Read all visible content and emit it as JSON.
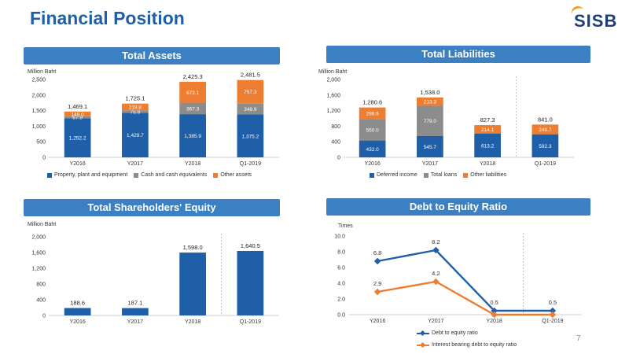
{
  "page": {
    "title": "Financial Position",
    "logo_text": "SISB",
    "page_number": "7"
  },
  "colors": {
    "navy": "#2d4f6c",
    "blue": "#1f5fa8",
    "gray": "#8c8c8c",
    "orange": "#ed7d31",
    "banner": "#3a80c2"
  },
  "chart_data": [
    {
      "id": "total_assets",
      "type": "bar",
      "stacked": true,
      "title": "Total Assets",
      "ylabel": "Million Baht",
      "ylim": [
        0,
        2500
      ],
      "yticks": [
        "0",
        "500",
        "1,000",
        "1,500",
        "2,000",
        "2,500"
      ],
      "categories": [
        "Y2016",
        "Y2017",
        "Y2018",
        "Q1-2019"
      ],
      "series": [
        {
          "name": "Property, plant and equipment",
          "color": "#1f5fa8",
          "values": [
            1252.2,
            1429.7,
            1385.9,
            1375.2
          ],
          "labels": [
            "1,252.2",
            "1,429.7",
            "1,385.9",
            "1,375.2"
          ]
        },
        {
          "name": "Cash and cash equivalents",
          "color": "#8c8c8c",
          "values": [
            67.9,
            75.6,
            367.3,
            348.9
          ],
          "labels": [
            "67.9",
            "75.6",
            "367.3",
            "348.9"
          ]
        },
        {
          "name": "Other assets",
          "color": "#ed7d31",
          "values": [
            149.0,
            219.8,
            672.1,
            757.3
          ],
          "labels": [
            "149.0",
            "219.8",
            "672.1",
            "757.3"
          ]
        }
      ],
      "totals": [
        "1,469.1",
        "1,725.1",
        "2,425.3",
        "2,481.5"
      ],
      "legend": "bottom"
    },
    {
      "id": "total_liabilities",
      "type": "bar",
      "stacked": true,
      "title": "Total Liabilities",
      "ylabel": "Million Baht",
      "ylim": [
        0,
        2000
      ],
      "yticks": [
        "0",
        "400",
        "800",
        "1,200",
        "1,600",
        "2,000"
      ],
      "categories": [
        "Y2016",
        "Y2017",
        "Y2018",
        "Q1-2019"
      ],
      "series": [
        {
          "name": "Deferred income",
          "color": "#1f5fa8",
          "values": [
            432.0,
            545.7,
            613.2,
            592.3
          ],
          "labels": [
            "432.0",
            "545.7",
            "613.2",
            "592.3"
          ]
        },
        {
          "name": "Total loans",
          "color": "#8c8c8c",
          "values": [
            550.0,
            779.0,
            0,
            0
          ],
          "labels": [
            "550.0",
            "779.0",
            "",
            ""
          ]
        },
        {
          "name": "Other liabilities",
          "color": "#ed7d31",
          "values": [
            298.6,
            213.3,
            214.1,
            248.7
          ],
          "labels": [
            "298.6",
            "213.3",
            "214.1",
            "248.7"
          ]
        }
      ],
      "totals": [
        "1,280.6",
        "1,538.0",
        "827.3",
        "841.0"
      ],
      "legend": "bottom"
    },
    {
      "id": "shareholders_equity",
      "type": "bar",
      "title": "Total Shareholders' Equity",
      "ylabel": "Million Baht",
      "ylim": [
        0,
        2000
      ],
      "yticks": [
        "0",
        "400",
        "800",
        "1,200",
        "1,600",
        "2,000"
      ],
      "categories": [
        "Y2016",
        "Y2017",
        "Y2018",
        "Q1-2019"
      ],
      "values": [
        188.6,
        187.1,
        1598.0,
        1640.5
      ],
      "labels": [
        "188.6",
        "187.1",
        "1,598.0",
        "1,640.5"
      ],
      "color": "#1f5fa8"
    },
    {
      "id": "debt_to_equity",
      "type": "line",
      "title": "Debt to Equity Ratio",
      "ylabel": "Times",
      "ylim": [
        0,
        10
      ],
      "yticks": [
        "0.0",
        "2.0",
        "4.0",
        "6.0",
        "8.0",
        "10.0"
      ],
      "categories": [
        "Y2016",
        "Y2017",
        "Y2018",
        "Q1-2019"
      ],
      "series": [
        {
          "name": "Debt to equity ratio",
          "color": "#1f5fa8",
          "values": [
            6.8,
            8.2,
            0.5,
            0.5
          ],
          "labels": [
            "6.8",
            "8.2",
            "0.5",
            "0.5"
          ]
        },
        {
          "name": "Interest bearing debt to equity ratio",
          "color": "#ed7d31",
          "values": [
            2.9,
            4.2,
            0.0,
            0.0
          ],
          "labels": [
            "2.9",
            "4.2",
            "",
            ""
          ]
        }
      ],
      "legend": "bottom"
    }
  ]
}
